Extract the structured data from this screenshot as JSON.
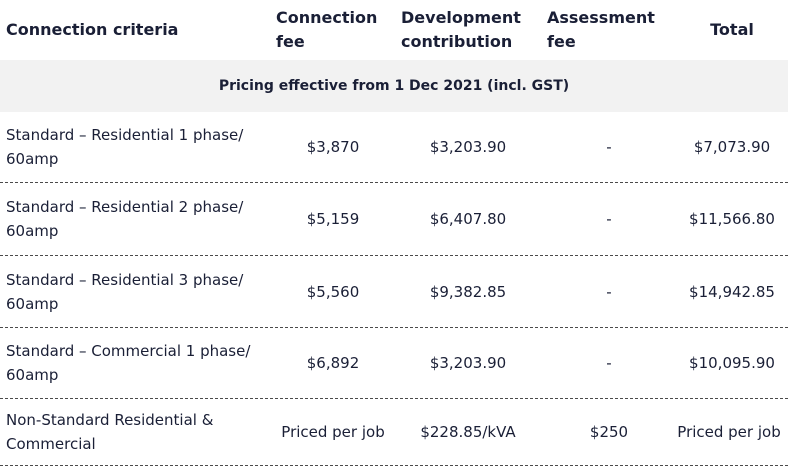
{
  "header": {
    "criteria": "Connection criteria",
    "connection_fee": "Connection fee",
    "development_contribution": "Development contribution",
    "assessment_fee": "Assessment fee",
    "total": "Total"
  },
  "subheader": "Pricing effective from 1 Dec 2021 (incl. GST)",
  "rows": [
    {
      "criteria": "Standard – Residential 1 phase/ 60amp",
      "connection_fee": "$3,870",
      "development_contribution": "$3,203.90",
      "assessment_fee": "-",
      "total": "$7,073.90"
    },
    {
      "criteria": "Standard – Residential 2 phase/ 60amp",
      "connection_fee": "$5,159",
      "development_contribution": "$6,407.80",
      "assessment_fee": "-",
      "total": "$11,566.80"
    },
    {
      "criteria": "Standard – Residential 3 phase/ 60amp",
      "connection_fee": "$5,560",
      "development_contribution": "$9,382.85",
      "assessment_fee": "-",
      "total": "$14,942.85"
    },
    {
      "criteria": "Standard – Commercial 1 phase/ 60amp",
      "connection_fee": "$6,892",
      "development_contribution": "$3,203.90",
      "assessment_fee": "-",
      "total": "$10,095.90"
    },
    {
      "criteria": "Non-Standard Residential & Commercial",
      "connection_fee": "Priced per job",
      "development_contribution": "$228.85/kVA",
      "assessment_fee": "$250",
      "total": "Priced per job"
    }
  ]
}
